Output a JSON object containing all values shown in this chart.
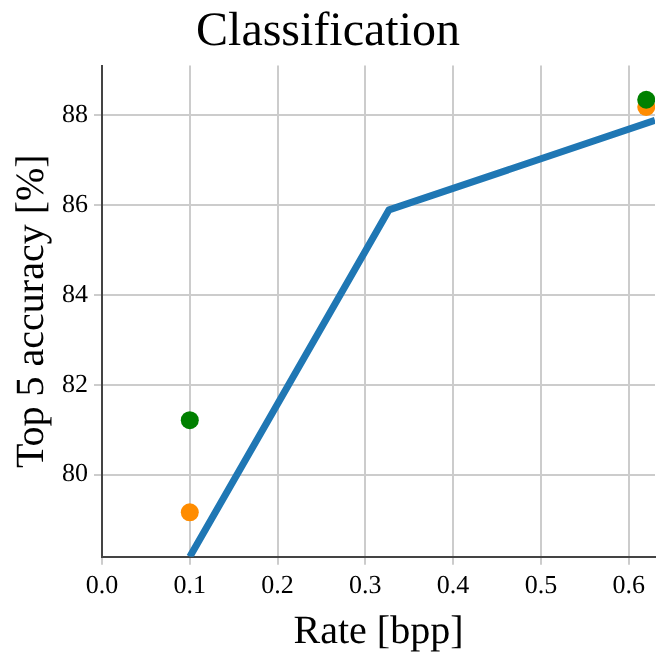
{
  "chart_data": {
    "type": "line",
    "title": "Classification",
    "xlabel": "Rate [bpp]",
    "ylabel": "Top 5 accuracy [%]",
    "xlim": [
      0,
      0.63
    ],
    "ylim": [
      78.17,
      89.1
    ],
    "xticks": [
      {
        "value": 0,
        "label": "0.0"
      },
      0.1,
      0.2,
      0.3,
      0.4,
      0.5,
      0.6
    ],
    "yticks": [
      80,
      82,
      84,
      86,
      88
    ],
    "grid": true,
    "legend": false,
    "series": [
      {
        "type": "line",
        "color": "#1f77b4",
        "x": [
          0.1,
          0.327,
          0.63
        ],
        "values": [
          78.17,
          85.89,
          87.88
        ],
        "marker": "none"
      },
      {
        "type": "scatter",
        "color": "#008000",
        "x": [
          0.1,
          0.62
        ],
        "values": [
          81.21,
          88.34
        ],
        "marker": "circle"
      },
      {
        "type": "scatter",
        "color": "#ff8c00",
        "x": [
          0.1,
          0.62
        ],
        "values": [
          79.16,
          88.18
        ],
        "marker": "circle"
      }
    ]
  }
}
